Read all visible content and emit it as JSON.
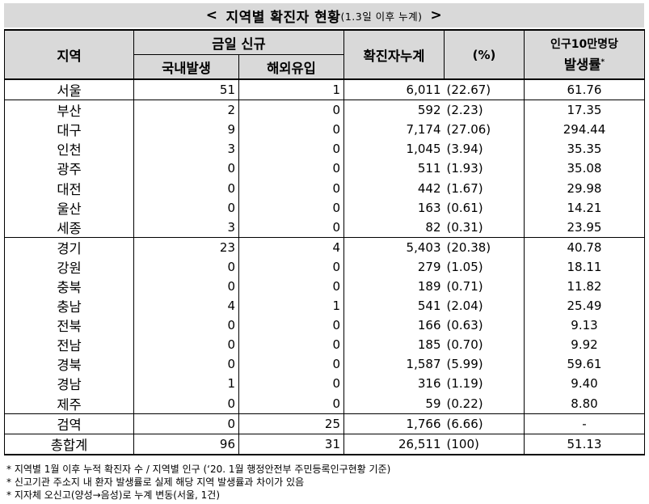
{
  "title": {
    "open": "<",
    "main": "지역별 확진자 현황",
    "sub": "(1.3일 이후 누계)",
    "close": ">"
  },
  "headers": {
    "region": "지역",
    "new_cases": "금일 신규",
    "domestic": "국내발생",
    "overseas": "해외유입",
    "cumulative": "확진자누계",
    "percent": "(%)",
    "rate_line1": "인구10만명당",
    "rate_line2": "발생률",
    "rate_mark": "*"
  },
  "rows": [
    {
      "region": "서울",
      "domestic": "51",
      "overseas": "1",
      "cumulative": "6,011",
      "percent": "(22.67)",
      "rate": "61.76"
    },
    {
      "region": "부산",
      "domestic": "2",
      "overseas": "0",
      "cumulative": "592",
      "percent": "(2.23)",
      "rate": "17.35"
    },
    {
      "region": "대구",
      "domestic": "9",
      "overseas": "0",
      "cumulative": "7,174",
      "percent": "(27.06)",
      "rate": "294.44"
    },
    {
      "region": "인천",
      "domestic": "3",
      "overseas": "0",
      "cumulative": "1,045",
      "percent": "(3.94)",
      "rate": "35.35"
    },
    {
      "region": "광주",
      "domestic": "0",
      "overseas": "0",
      "cumulative": "511",
      "percent": "(1.93)",
      "rate": "35.08"
    },
    {
      "region": "대전",
      "domestic": "0",
      "overseas": "0",
      "cumulative": "442",
      "percent": "(1.67)",
      "rate": "29.98"
    },
    {
      "region": "울산",
      "domestic": "0",
      "overseas": "0",
      "cumulative": "163",
      "percent": "(0.61)",
      "rate": "14.21"
    },
    {
      "region": "세종",
      "domestic": "3",
      "overseas": "0",
      "cumulative": "82",
      "percent": "(0.31)",
      "rate": "23.95"
    },
    {
      "region": "경기",
      "domestic": "23",
      "overseas": "4",
      "cumulative": "5,403",
      "percent": "(20.38)",
      "rate": "40.78"
    },
    {
      "region": "강원",
      "domestic": "0",
      "overseas": "0",
      "cumulative": "279",
      "percent": "(1.05)",
      "rate": "18.11"
    },
    {
      "region": "충북",
      "domestic": "0",
      "overseas": "0",
      "cumulative": "189",
      "percent": "(0.71)",
      "rate": "11.82"
    },
    {
      "region": "충남",
      "domestic": "4",
      "overseas": "1",
      "cumulative": "541",
      "percent": "(2.04)",
      "rate": "25.49"
    },
    {
      "region": "전북",
      "domestic": "0",
      "overseas": "0",
      "cumulative": "166",
      "percent": "(0.63)",
      "rate": "9.13"
    },
    {
      "region": "전남",
      "domestic": "0",
      "overseas": "0",
      "cumulative": "185",
      "percent": "(0.70)",
      "rate": "9.92"
    },
    {
      "region": "경북",
      "domestic": "0",
      "overseas": "0",
      "cumulative": "1,587",
      "percent": "(5.99)",
      "rate": "59.61"
    },
    {
      "region": "경남",
      "domestic": "1",
      "overseas": "0",
      "cumulative": "316",
      "percent": "(1.19)",
      "rate": "9.40"
    },
    {
      "region": "제주",
      "domestic": "0",
      "overseas": "0",
      "cumulative": "59",
      "percent": "(0.22)",
      "rate": "8.80"
    },
    {
      "region": "검역",
      "domestic": "0",
      "overseas": "25",
      "cumulative": "1,766",
      "percent": "(6.66)",
      "rate": "-"
    }
  ],
  "total": {
    "region": "총합계",
    "domestic": "96",
    "overseas": "31",
    "cumulative": "26,511",
    "percent": "(100)",
    "rate": "51.13"
  },
  "notes": [
    "* 지역별 1월 이후 누적 확진자 수 / 지역별 인구 (‘20. 1월 행정안전부 주민등록인구현황 기준)",
    "* 신고기관 주소지 내 환자 발생률로 실제 해당 지역 발생률과 차이가 있음",
    "* 지자체 오신고(양성→음성)로 누계 변동(서울, 1건)"
  ]
}
